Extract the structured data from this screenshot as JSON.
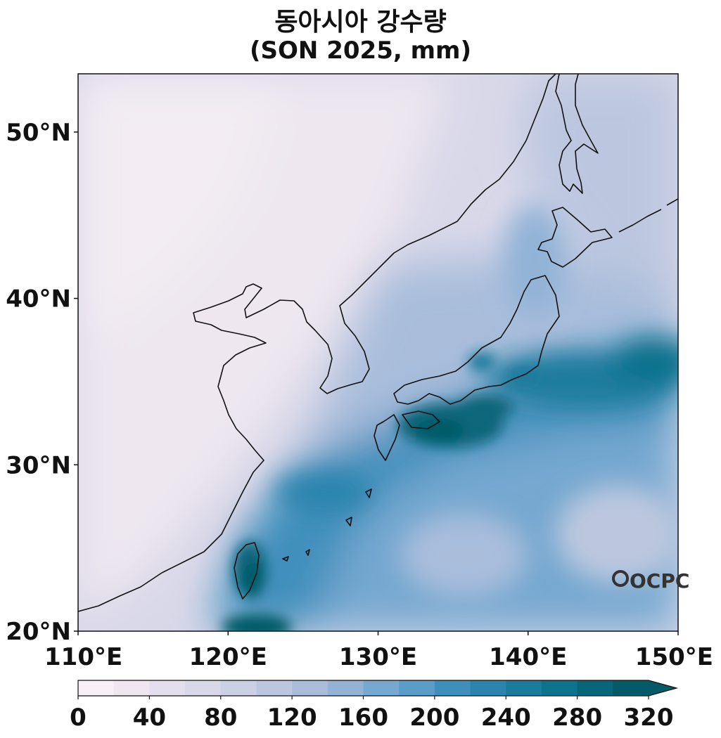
{
  "title": "동아시아 강수량",
  "subtitle": "(SON 2025, mm)",
  "map": {
    "lon_range": [
      110,
      150
    ],
    "lat_range": [
      20,
      53.5
    ],
    "lon_ticks": [
      "110°E",
      "120°E",
      "130°E",
      "140°E",
      "150°E"
    ],
    "lat_ticks": [
      "20°N",
      "30°N",
      "40°N",
      "50°N"
    ],
    "watermark": "OCPC"
  },
  "colorbar": {
    "levels": [
      0,
      20,
      40,
      60,
      80,
      100,
      120,
      140,
      160,
      180,
      200,
      220,
      240,
      260,
      280,
      300,
      320
    ],
    "tick_values": [
      0,
      40,
      80,
      120,
      160,
      200,
      240,
      280,
      320
    ],
    "tick_labels": [
      "0",
      "40",
      "80",
      "120",
      "160",
      "200",
      "240",
      "280",
      "320"
    ],
    "colors": [
      "#f7f0f6",
      "#eee7f0",
      "#e4dfec",
      "#d9d8e9",
      "#cbd0e4",
      "#bcc7df",
      "#a9bddb",
      "#92b3d6",
      "#76a8d0",
      "#5a9dc8",
      "#3f8fbc",
      "#2a84ad",
      "#1a7b9d",
      "#0d728c",
      "#07667a",
      "#045a66"
    ],
    "extend": "max"
  }
}
